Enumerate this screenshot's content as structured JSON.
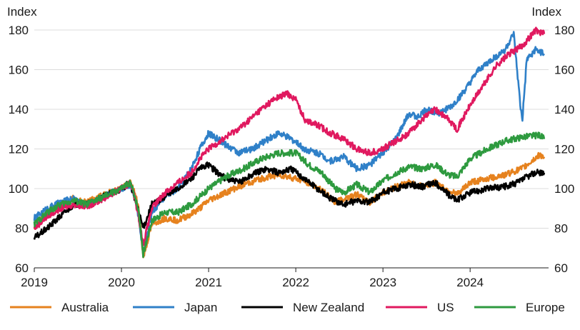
{
  "chart_data": {
    "type": "line",
    "ylabel_left": "Index",
    "ylabel_right": "Index",
    "ylim": [
      60,
      180
    ],
    "yticks": [
      60,
      80,
      100,
      120,
      140,
      160,
      180
    ],
    "xlim": [
      2019.0,
      2024.9
    ],
    "xticks": [
      2019,
      2020,
      2021,
      2022,
      2023,
      2024
    ],
    "xtick_labels": [
      "2019",
      "2020",
      "2021",
      "2022",
      "2023",
      "2024"
    ],
    "grid": "horizontal",
    "legend": "bottom",
    "series": [
      {
        "name": "Australia",
        "color": "#e6821e",
        "x": [
          2019.0,
          2019.15,
          2019.3,
          2019.45,
          2019.6,
          2019.8,
          2020.0,
          2020.1,
          2020.15,
          2020.2,
          2020.25,
          2020.35,
          2020.5,
          2020.65,
          2020.8,
          2020.9,
          2021.0,
          2021.2,
          2021.4,
          2021.6,
          2021.8,
          2022.0,
          2022.15,
          2022.3,
          2022.45,
          2022.55,
          2022.7,
          2022.85,
          2023.0,
          2023.15,
          2023.3,
          2023.45,
          2023.6,
          2023.75,
          2023.85,
          2024.0,
          2024.2,
          2024.4,
          2024.6,
          2024.8,
          2024.85
        ],
        "y": [
          80,
          88,
          92,
          95,
          93,
          97,
          100,
          103,
          98,
          90,
          65,
          82,
          85,
          84,
          87,
          90,
          94,
          98,
          102,
          105,
          107,
          105,
          103,
          99,
          93,
          95,
          97,
          93,
          98,
          101,
          103,
          101,
          103,
          99,
          97,
          103,
          105,
          107,
          110,
          117,
          116
        ]
      },
      {
        "name": "Japan",
        "color": "#2f80c8",
        "x": [
          2019.0,
          2019.15,
          2019.3,
          2019.45,
          2019.6,
          2019.8,
          2020.0,
          2020.1,
          2020.15,
          2020.2,
          2020.25,
          2020.35,
          2020.5,
          2020.65,
          2020.8,
          2020.9,
          2021.0,
          2021.1,
          2021.2,
          2021.35,
          2021.5,
          2021.65,
          2021.8,
          2021.95,
          2022.1,
          2022.25,
          2022.4,
          2022.55,
          2022.7,
          2022.85,
          2023.0,
          2023.15,
          2023.3,
          2023.4,
          2023.5,
          2023.65,
          2023.8,
          2023.95,
          2024.1,
          2024.25,
          2024.4,
          2024.5,
          2024.58,
          2024.6,
          2024.65,
          2024.75,
          2024.85
        ],
        "y": [
          85,
          90,
          93,
          95,
          92,
          96,
          100,
          102,
          96,
          85,
          68,
          88,
          96,
          100,
          110,
          120,
          128,
          125,
          122,
          118,
          120,
          124,
          128,
          125,
          120,
          118,
          114,
          116,
          110,
          112,
          118,
          125,
          138,
          136,
          140,
          138,
          142,
          150,
          160,
          165,
          170,
          178,
          140,
          135,
          165,
          170,
          168
        ]
      },
      {
        "name": "New Zealand",
        "color": "#000000",
        "x": [
          2019.0,
          2019.15,
          2019.3,
          2019.45,
          2019.6,
          2019.8,
          2020.0,
          2020.1,
          2020.15,
          2020.2,
          2020.25,
          2020.35,
          2020.5,
          2020.65,
          2020.8,
          2020.9,
          2021.0,
          2021.1,
          2021.2,
          2021.35,
          2021.5,
          2021.65,
          2021.8,
          2021.95,
          2022.1,
          2022.25,
          2022.4,
          2022.55,
          2022.7,
          2022.85,
          2023.0,
          2023.15,
          2023.3,
          2023.45,
          2023.6,
          2023.75,
          2023.85,
          2024.0,
          2024.2,
          2024.4,
          2024.55,
          2024.65,
          2024.75,
          2024.85
        ],
        "y": [
          75,
          80,
          86,
          92,
          92,
          96,
          100,
          103,
          95,
          88,
          80,
          92,
          96,
          100,
          105,
          110,
          112,
          108,
          105,
          103,
          107,
          110,
          108,
          110,
          105,
          100,
          95,
          92,
          94,
          93,
          98,
          100,
          102,
          101,
          103,
          97,
          94,
          98,
          100,
          101,
          103,
          106,
          108,
          108
        ]
      },
      {
        "name": "US",
        "color": "#e0195f",
        "x": [
          2019.0,
          2019.15,
          2019.3,
          2019.45,
          2019.6,
          2019.8,
          2020.0,
          2020.1,
          2020.15,
          2020.2,
          2020.25,
          2020.35,
          2020.5,
          2020.65,
          2020.8,
          2020.9,
          2021.0,
          2021.2,
          2021.4,
          2021.6,
          2021.75,
          2021.9,
          2022.0,
          2022.1,
          2022.25,
          2022.4,
          2022.55,
          2022.7,
          2022.85,
          2023.0,
          2023.15,
          2023.3,
          2023.45,
          2023.6,
          2023.75,
          2023.85,
          2024.0,
          2024.15,
          2024.3,
          2024.45,
          2024.6,
          2024.75,
          2024.85
        ],
        "y": [
          80,
          86,
          90,
          92,
          91,
          95,
          100,
          103,
          96,
          85,
          72,
          90,
          98,
          103,
          108,
          115,
          120,
          126,
          132,
          140,
          145,
          148,
          145,
          135,
          132,
          128,
          125,
          120,
          118,
          120,
          124,
          128,
          135,
          140,
          135,
          130,
          142,
          152,
          162,
          168,
          172,
          180,
          178
        ]
      },
      {
        "name": "Europe",
        "color": "#2e9a3f",
        "x": [
          2019.0,
          2019.15,
          2019.3,
          2019.45,
          2019.6,
          2019.8,
          2020.0,
          2020.1,
          2020.15,
          2020.2,
          2020.25,
          2020.35,
          2020.5,
          2020.65,
          2020.8,
          2020.9,
          2021.0,
          2021.2,
          2021.4,
          2021.6,
          2021.8,
          2022.0,
          2022.15,
          2022.3,
          2022.45,
          2022.55,
          2022.7,
          2022.85,
          2023.0,
          2023.15,
          2023.3,
          2023.45,
          2023.6,
          2023.75,
          2023.85,
          2024.0,
          2024.2,
          2024.4,
          2024.6,
          2024.8,
          2024.85
        ],
        "y": [
          82,
          88,
          92,
          94,
          92,
          96,
          100,
          103,
          97,
          88,
          67,
          84,
          88,
          88,
          92,
          96,
          100,
          106,
          110,
          115,
          118,
          118,
          112,
          108,
          100,
          98,
          102,
          98,
          104,
          108,
          111,
          110,
          112,
          107,
          106,
          115,
          120,
          124,
          126,
          127,
          125
        ]
      }
    ]
  }
}
